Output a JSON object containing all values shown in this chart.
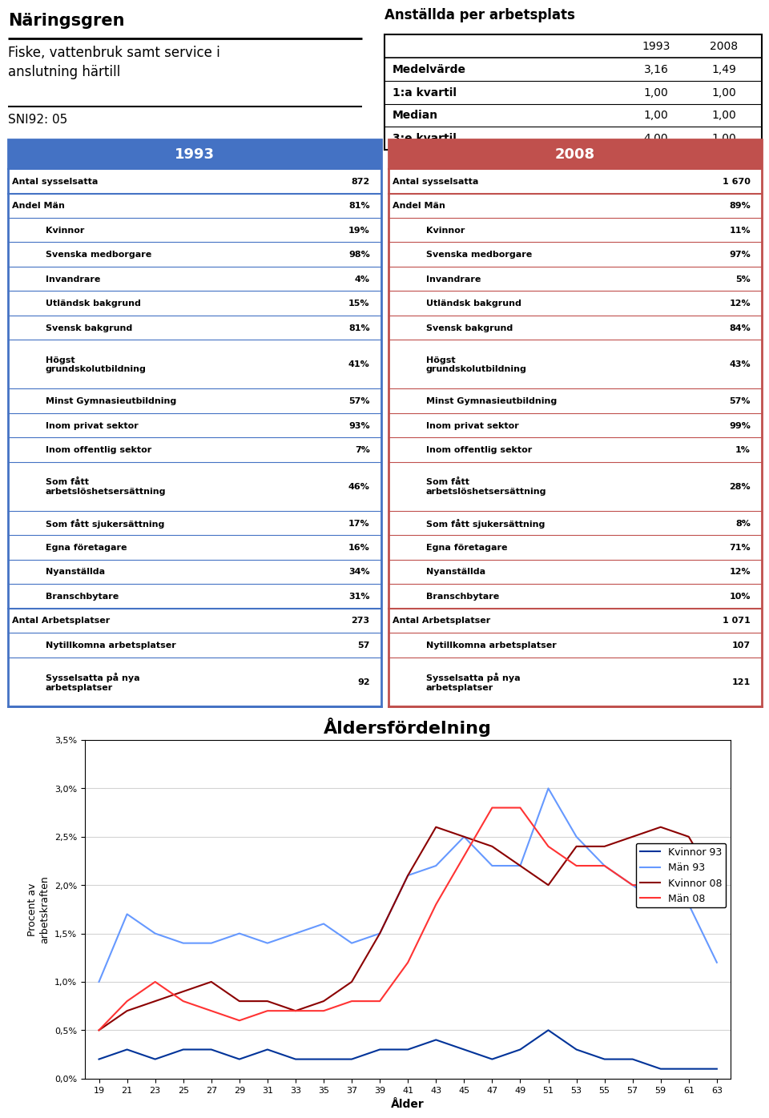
{
  "title_left": "Näringsgren",
  "subtitle": "Fiske, vattenbruk samt service i\nanslutning härtill",
  "sni": "SNI92: 05",
  "table_title": "Anställda per arbetsplats",
  "table_rows": [
    [
      "Medelvärde",
      "3,16",
      "1,49"
    ],
    [
      "1:a kvartil",
      "1,00",
      "1,00"
    ],
    [
      "Median",
      "1,00",
      "1,00"
    ],
    [
      "3:e kvartil",
      "4,00",
      "1,00"
    ]
  ],
  "col1993_header": "1993",
  "col2008_header": "2008",
  "header_bg_1993": "#4472C4",
  "header_bg_2008": "#C0504D",
  "rows_1993": [
    {
      "label": "Antal sysselsatta",
      "value": "872",
      "indent": false
    },
    {
      "label": "Andel Män",
      "value": "81%",
      "indent": false
    },
    {
      "label": "Kvinnor",
      "value": "19%",
      "indent": true
    },
    {
      "label": "Svenska medborgare",
      "value": "98%",
      "indent": true
    },
    {
      "label": "Invandrare",
      "value": "4%",
      "indent": true
    },
    {
      "label": "Utländsk bakgrund",
      "value": "15%",
      "indent": true
    },
    {
      "label": "Svensk bakgrund",
      "value": "81%",
      "indent": true
    },
    {
      "label": "Högst\ngrundskolutbildning",
      "value": "41%",
      "indent": true
    },
    {
      "label": "Minst Gymnasieutbildning",
      "value": "57%",
      "indent": true
    },
    {
      "label": "Inom privat sektor",
      "value": "93%",
      "indent": true
    },
    {
      "label": "Inom offentlig sektor",
      "value": "7%",
      "indent": true
    },
    {
      "label": "Som fått\narbetslöshetsersättning",
      "value": "46%",
      "indent": true
    },
    {
      "label": "Som fått sjukersättning",
      "value": "17%",
      "indent": true
    },
    {
      "label": "Egna företagare",
      "value": "16%",
      "indent": true
    },
    {
      "label": "Nyanställda",
      "value": "34%",
      "indent": true
    },
    {
      "label": "Branschbytare",
      "value": "31%",
      "indent": true
    },
    {
      "label": "Antal Arbetsplatser",
      "value": "273",
      "indent": false
    },
    {
      "label": "Nytillkomna arbetsplatser",
      "value": "57",
      "indent": true
    },
    {
      "label": "Sysselsatta på nya\narbetsplatser",
      "value": "92",
      "indent": true
    }
  ],
  "rows_2008": [
    {
      "label": "Antal sysselsatta",
      "value": "1 670",
      "indent": false
    },
    {
      "label": "Andel Män",
      "value": "89%",
      "indent": false
    },
    {
      "label": "Kvinnor",
      "value": "11%",
      "indent": true
    },
    {
      "label": "Svenska medborgare",
      "value": "97%",
      "indent": true
    },
    {
      "label": "Invandrare",
      "value": "5%",
      "indent": true
    },
    {
      "label": "Utländsk bakgrund",
      "value": "12%",
      "indent": true
    },
    {
      "label": "Svensk bakgrund",
      "value": "84%",
      "indent": true
    },
    {
      "label": "Högst\ngrundskolutbildning",
      "value": "43%",
      "indent": true
    },
    {
      "label": "Minst Gymnasieutbildning",
      "value": "57%",
      "indent": true
    },
    {
      "label": "Inom privat sektor",
      "value": "99%",
      "indent": true
    },
    {
      "label": "Inom offentlig sektor",
      "value": "1%",
      "indent": true
    },
    {
      "label": "Som fått\narbetslöshetsersättning",
      "value": "28%",
      "indent": true
    },
    {
      "label": "Som fått sjukersättning",
      "value": "8%",
      "indent": true
    },
    {
      "label": "Egna företagare",
      "value": "71%",
      "indent": true
    },
    {
      "label": "Nyanställda",
      "value": "12%",
      "indent": true
    },
    {
      "label": "Branschbytare",
      "value": "10%",
      "indent": true
    },
    {
      "label": "Antal Arbetsplatser",
      "value": "1 071",
      "indent": false
    },
    {
      "label": "Nytillkomna arbetsplatser",
      "value": "107",
      "indent": true
    },
    {
      "label": "Sysselsatta på nya\narbetsplatser",
      "value": "121",
      "indent": true
    }
  ],
  "chart_title": "Åldersfördelning",
  "chart_ylabel": "Procent av\narbetskraften",
  "chart_xlabel": "Ålder",
  "ages": [
    19,
    21,
    23,
    25,
    27,
    29,
    31,
    33,
    35,
    37,
    39,
    41,
    43,
    45,
    47,
    49,
    51,
    53,
    55,
    57,
    59,
    61,
    63
  ],
  "kvinnor93": [
    0.2,
    0.3,
    0.2,
    0.3,
    0.3,
    0.2,
    0.3,
    0.2,
    0.2,
    0.2,
    0.3,
    0.3,
    0.4,
    0.3,
    0.2,
    0.3,
    0.5,
    0.3,
    0.2,
    0.2,
    0.1,
    0.1,
    0.1
  ],
  "man93": [
    1.0,
    1.7,
    1.5,
    1.4,
    1.4,
    1.5,
    1.4,
    1.5,
    1.6,
    1.4,
    1.5,
    2.1,
    2.2,
    2.5,
    2.2,
    2.2,
    3.0,
    2.5,
    2.2,
    2.0,
    1.8,
    1.8,
    1.2
  ],
  "kvinnor08": [
    0.5,
    0.7,
    0.8,
    0.9,
    1.0,
    0.8,
    0.8,
    0.7,
    0.8,
    1.0,
    1.5,
    2.1,
    2.6,
    2.5,
    2.4,
    2.2,
    2.0,
    2.4,
    2.4,
    2.5,
    2.6,
    2.5,
    2.0
  ],
  "man08": [
    0.5,
    0.8,
    1.0,
    0.8,
    0.7,
    0.6,
    0.7,
    0.7,
    0.7,
    0.8,
    0.8,
    1.2,
    1.8,
    2.3,
    2.8,
    2.8,
    2.4,
    2.2,
    2.2,
    2.0,
    2.0,
    2.2,
    2.1
  ],
  "line_colors": {
    "kvinnor93": "#003399",
    "man93": "#6699FF",
    "kvinnor08": "#8B0000",
    "man08": "#FF3333"
  },
  "legend_labels": [
    "Kvinnor 93",
    "Män 93",
    "Kvinnor 08",
    "Män 08"
  ],
  "yticks": [
    0.0,
    0.5,
    1.0,
    1.5,
    2.0,
    2.5,
    3.0,
    3.5
  ],
  "ytick_labels": [
    "0,0%",
    "0,5%",
    "1,0%",
    "1,5%",
    "2,0%",
    "2,5%",
    "3,0%",
    "3,5%"
  ]
}
